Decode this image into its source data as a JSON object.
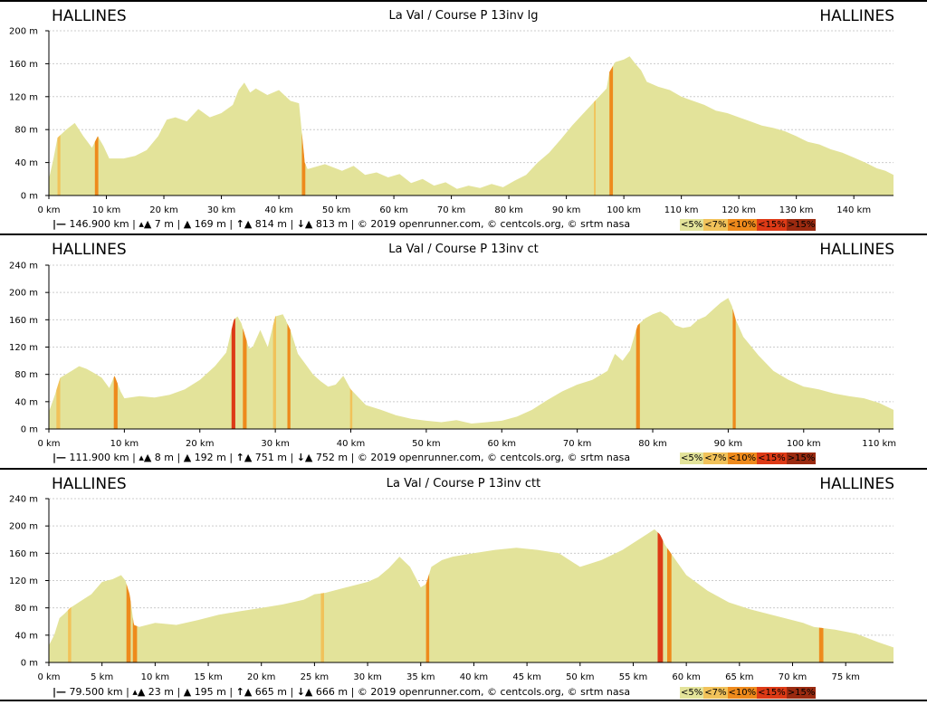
{
  "colors": {
    "lt5": "#e3e39a",
    "lt7": "#f1c25a",
    "lt10": "#ee8a1c",
    "lt15": "#dd3a16",
    "gt15": "#9a2a10",
    "grid": "#cccccc",
    "axis": "#000000"
  },
  "legend": [
    "<5%",
    "<7%",
    "<10%",
    "<15%",
    ">15%"
  ],
  "chart_data": [
    {
      "type": "area",
      "title": "La Val / Course P 13inv lg",
      "start_label": "HALLINES",
      "end_label": "HALLINES",
      "xlim": [
        0,
        146.9
      ],
      "ylim": [
        0,
        200
      ],
      "x_ticks": [
        0,
        10,
        20,
        30,
        40,
        50,
        60,
        70,
        80,
        90,
        100,
        110,
        120,
        130,
        140
      ],
      "x_tick_labels": [
        "0 km",
        "10 km",
        "20 km",
        "30 km",
        "40 km",
        "50 km",
        "60 km",
        "70 km",
        "80 km",
        "90 km",
        "100 km",
        "110 km",
        "120 km",
        "130 km",
        "140 km"
      ],
      "y_ticks": [
        0,
        40,
        80,
        120,
        160,
        200
      ],
      "y_tick_labels": [
        "0 m",
        "40 m",
        "80 m",
        "120 m",
        "160 m",
        "200 m"
      ],
      "grid": true,
      "stats": {
        "distance": "146.900 km",
        "min_alt": "7 m",
        "max_alt": "169 m",
        "ascent": "814 m",
        "descent": "813 m",
        "credits": "© 2019 openrunner.com, © centcols.org, © srtm nasa"
      },
      "profile": [
        [
          0,
          20
        ],
        [
          0.8,
          45
        ],
        [
          1.5,
          70
        ],
        [
          3,
          80
        ],
        [
          4.5,
          88
        ],
        [
          6,
          72
        ],
        [
          7.5,
          58
        ],
        [
          8.5,
          72
        ],
        [
          9.5,
          60
        ],
        [
          10.5,
          45
        ],
        [
          13,
          45
        ],
        [
          15,
          48
        ],
        [
          17,
          55
        ],
        [
          19,
          72
        ],
        [
          20.5,
          92
        ],
        [
          22,
          95
        ],
        [
          24,
          90
        ],
        [
          26,
          105
        ],
        [
          28,
          95
        ],
        [
          30,
          100
        ],
        [
          32,
          110
        ],
        [
          33,
          128
        ],
        [
          34,
          137
        ],
        [
          35,
          125
        ],
        [
          36,
          130
        ],
        [
          38,
          122
        ],
        [
          40,
          128
        ],
        [
          42,
          115
        ],
        [
          43.5,
          112
        ],
        [
          44.5,
          40
        ],
        [
          45,
          32
        ],
        [
          48,
          38
        ],
        [
          51,
          30
        ],
        [
          53,
          36
        ],
        [
          55,
          25
        ],
        [
          57,
          28
        ],
        [
          59,
          22
        ],
        [
          61,
          26
        ],
        [
          63,
          15
        ],
        [
          65,
          20
        ],
        [
          67,
          12
        ],
        [
          69,
          16
        ],
        [
          71,
          8
        ],
        [
          73,
          12
        ],
        [
          75,
          9
        ],
        [
          77,
          14
        ],
        [
          79,
          10
        ],
        [
          81,
          18
        ],
        [
          83,
          25
        ],
        [
          85,
          40
        ],
        [
          87,
          52
        ],
        [
          89,
          68
        ],
        [
          91,
          85
        ],
        [
          93,
          100
        ],
        [
          95,
          115
        ],
        [
          97,
          130
        ],
        [
          97.5,
          150
        ],
        [
          98.5,
          162
        ],
        [
          100,
          165
        ],
        [
          101,
          169
        ],
        [
          102,
          160
        ],
        [
          103,
          152
        ],
        [
          104,
          138
        ],
        [
          106,
          132
        ],
        [
          108,
          128
        ],
        [
          110,
          120
        ],
        [
          112,
          115
        ],
        [
          114,
          110
        ],
        [
          116,
          103
        ],
        [
          118,
          100
        ],
        [
          120,
          95
        ],
        [
          122,
          90
        ],
        [
          124,
          85
        ],
        [
          126,
          82
        ],
        [
          128,
          78
        ],
        [
          130,
          72
        ],
        [
          132,
          65
        ],
        [
          134,
          62
        ],
        [
          136,
          56
        ],
        [
          138,
          52
        ],
        [
          140,
          46
        ],
        [
          142,
          40
        ],
        [
          144,
          33
        ],
        [
          145.5,
          30
        ],
        [
          146.9,
          25
        ]
      ],
      "steep_segments": [
        {
          "from": 1.5,
          "to": 2.0,
          "grade": "<7%"
        },
        {
          "from": 8.0,
          "to": 8.6,
          "grade": "<10%"
        },
        {
          "from": 44.0,
          "to": 44.6,
          "grade": "<10%"
        },
        {
          "from": 94.8,
          "to": 95.1,
          "grade": "<7%"
        },
        {
          "from": 97.5,
          "to": 98.1,
          "grade": "<10%"
        }
      ]
    },
    {
      "type": "area",
      "title": "La Val / Course P 13inv ct",
      "start_label": "HALLINES",
      "end_label": "HALLINES",
      "xlim": [
        0,
        111.9
      ],
      "ylim": [
        0,
        240
      ],
      "x_ticks": [
        0,
        10,
        20,
        30,
        40,
        50,
        60,
        70,
        80,
        90,
        100,
        110
      ],
      "x_tick_labels": [
        "0 km",
        "10 km",
        "20 km",
        "30 km",
        "40 km",
        "50 km",
        "60 km",
        "70 km",
        "80 km",
        "90 km",
        "100 km",
        "110 km"
      ],
      "y_ticks": [
        0,
        40,
        80,
        120,
        160,
        200,
        240
      ],
      "y_tick_labels": [
        "0 m",
        "40 m",
        "80 m",
        "120 m",
        "160 m",
        "200 m",
        "240 m"
      ],
      "grid": true,
      "stats": {
        "distance": "111.900 km",
        "min_alt": "8 m",
        "max_alt": "192 m",
        "ascent": "751 m",
        "descent": "752 m",
        "credits": "© 2019 openrunner.com, © centcols.org, © srtm nasa"
      },
      "profile": [
        [
          0,
          25
        ],
        [
          0.8,
          50
        ],
        [
          1.5,
          75
        ],
        [
          3,
          85
        ],
        [
          4,
          92
        ],
        [
          5,
          88
        ],
        [
          6,
          82
        ],
        [
          7,
          75
        ],
        [
          8,
          60
        ],
        [
          8.7,
          78
        ],
        [
          9.5,
          55
        ],
        [
          10,
          45
        ],
        [
          12,
          48
        ],
        [
          14,
          46
        ],
        [
          16,
          50
        ],
        [
          18,
          58
        ],
        [
          20,
          72
        ],
        [
          22,
          92
        ],
        [
          23.5,
          112
        ],
        [
          24.5,
          160
        ],
        [
          25,
          165
        ],
        [
          25.5,
          155
        ],
        [
          26.5,
          118
        ],
        [
          27,
          120
        ],
        [
          28,
          145
        ],
        [
          29,
          120
        ],
        [
          30,
          165
        ],
        [
          31,
          168
        ],
        [
          32,
          145
        ],
        [
          33,
          110
        ],
        [
          34,
          95
        ],
        [
          35,
          80
        ],
        [
          36,
          70
        ],
        [
          37,
          62
        ],
        [
          38,
          65
        ],
        [
          39,
          78
        ],
        [
          40,
          58
        ],
        [
          42,
          35
        ],
        [
          44,
          28
        ],
        [
          46,
          20
        ],
        [
          48,
          15
        ],
        [
          50,
          12
        ],
        [
          52,
          10
        ],
        [
          54,
          13
        ],
        [
          56,
          8
        ],
        [
          58,
          10
        ],
        [
          60,
          12
        ],
        [
          62,
          18
        ],
        [
          64,
          28
        ],
        [
          66,
          42
        ],
        [
          68,
          55
        ],
        [
          70,
          65
        ],
        [
          72,
          72
        ],
        [
          74,
          85
        ],
        [
          75,
          110
        ],
        [
          76,
          100
        ],
        [
          77,
          115
        ],
        [
          78,
          152
        ],
        [
          79,
          162
        ],
        [
          80,
          168
        ],
        [
          81,
          172
        ],
        [
          82,
          165
        ],
        [
          83,
          152
        ],
        [
          84,
          148
        ],
        [
          85,
          150
        ],
        [
          86,
          160
        ],
        [
          87,
          165
        ],
        [
          88,
          175
        ],
        [
          89,
          185
        ],
        [
          90,
          192
        ],
        [
          90.5,
          180
        ],
        [
          91,
          160
        ],
        [
          92,
          135
        ],
        [
          94,
          108
        ],
        [
          96,
          85
        ],
        [
          98,
          72
        ],
        [
          100,
          62
        ],
        [
          102,
          58
        ],
        [
          104,
          52
        ],
        [
          106,
          48
        ],
        [
          108,
          45
        ],
        [
          110,
          38
        ],
        [
          111.9,
          28
        ]
      ],
      "steep_segments": [
        {
          "from": 1.0,
          "to": 1.5,
          "grade": "<7%"
        },
        {
          "from": 8.6,
          "to": 9.1,
          "grade": "<10%"
        },
        {
          "from": 24.2,
          "to": 24.7,
          "grade": "<15%"
        },
        {
          "from": 25.7,
          "to": 26.2,
          "grade": "<10%"
        },
        {
          "from": 29.7,
          "to": 30.1,
          "grade": "<7%"
        },
        {
          "from": 31.6,
          "to": 32.0,
          "grade": "<10%"
        },
        {
          "from": 39.9,
          "to": 40.2,
          "grade": "<7%"
        },
        {
          "from": 77.8,
          "to": 78.3,
          "grade": "<10%"
        },
        {
          "from": 90.6,
          "to": 91.0,
          "grade": "<10%"
        }
      ]
    },
    {
      "type": "area",
      "title": "La Val / Course P 13inv ctt",
      "start_label": "HALLINES",
      "end_label": "HALLINES",
      "xlim": [
        0,
        79.5
      ],
      "ylim": [
        0,
        240
      ],
      "x_ticks": [
        0,
        5,
        10,
        15,
        20,
        25,
        30,
        35,
        40,
        45,
        50,
        55,
        60,
        65,
        70,
        75
      ],
      "x_tick_labels": [
        "0 km",
        "5 km",
        "10 km",
        "15 km",
        "20 km",
        "25 km",
        "30 km",
        "35 km",
        "40 km",
        "45 km",
        "50 km",
        "55 km",
        "60 km",
        "65 km",
        "70 km",
        "75 km"
      ],
      "y_ticks": [
        0,
        40,
        80,
        120,
        160,
        200,
        240
      ],
      "y_tick_labels": [
        "0 m",
        "40 m",
        "80 m",
        "120 m",
        "160 m",
        "200 m",
        "240 m"
      ],
      "grid": true,
      "stats": {
        "distance": "79.500 km",
        "min_alt": "23 m",
        "max_alt": "195 m",
        "ascent": "665 m",
        "descent": "666 m",
        "credits": "© 2019 openrunner.com, © centcols.org, © srtm nasa"
      },
      "profile": [
        [
          0,
          25
        ],
        [
          0.5,
          40
        ],
        [
          1,
          65
        ],
        [
          1.5,
          72
        ],
        [
          2,
          80
        ],
        [
          3,
          90
        ],
        [
          4,
          100
        ],
        [
          5,
          118
        ],
        [
          6,
          122
        ],
        [
          6.8,
          128
        ],
        [
          7.2,
          120
        ],
        [
          7.6,
          100
        ],
        [
          8,
          55
        ],
        [
          8.5,
          52
        ],
        [
          10,
          58
        ],
        [
          12,
          55
        ],
        [
          14,
          62
        ],
        [
          16,
          70
        ],
        [
          18,
          75
        ],
        [
          20,
          80
        ],
        [
          22,
          85
        ],
        [
          24,
          92
        ],
        [
          25,
          100
        ],
        [
          26,
          102
        ],
        [
          28,
          110
        ],
        [
          30,
          118
        ],
        [
          31,
          125
        ],
        [
          32,
          138
        ],
        [
          33,
          155
        ],
        [
          34,
          140
        ],
        [
          35,
          110
        ],
        [
          35.5,
          115
        ],
        [
          36,
          140
        ],
        [
          37,
          150
        ],
        [
          38,
          155
        ],
        [
          40,
          160
        ],
        [
          42,
          165
        ],
        [
          44,
          168
        ],
        [
          46,
          165
        ],
        [
          48,
          160
        ],
        [
          50,
          140
        ],
        [
          52,
          150
        ],
        [
          54,
          165
        ],
        [
          55,
          175
        ],
        [
          56,
          185
        ],
        [
          57,
          195
        ],
        [
          57.5,
          188
        ],
        [
          58,
          172
        ],
        [
          59,
          150
        ],
        [
          60,
          128
        ],
        [
          62,
          105
        ],
        [
          64,
          88
        ],
        [
          66,
          78
        ],
        [
          68,
          70
        ],
        [
          70,
          62
        ],
        [
          71,
          58
        ],
        [
          72,
          52
        ],
        [
          73,
          50
        ],
        [
          74,
          48
        ],
        [
          76,
          42
        ],
        [
          78,
          30
        ],
        [
          79.5,
          22
        ]
      ],
      "steep_segments": [
        {
          "from": 1.8,
          "to": 2.1,
          "grade": "<7%"
        },
        {
          "from": 7.3,
          "to": 7.7,
          "grade": "<10%"
        },
        {
          "from": 7.9,
          "to": 8.3,
          "grade": "<10%"
        },
        {
          "from": 25.6,
          "to": 25.9,
          "grade": "<7%"
        },
        {
          "from": 35.5,
          "to": 35.8,
          "grade": "<10%"
        },
        {
          "from": 57.3,
          "to": 57.8,
          "grade": "<15%"
        },
        {
          "from": 58.2,
          "to": 58.6,
          "grade": "<10%"
        },
        {
          "from": 72.5,
          "to": 72.9,
          "grade": "<10%"
        }
      ]
    }
  ]
}
